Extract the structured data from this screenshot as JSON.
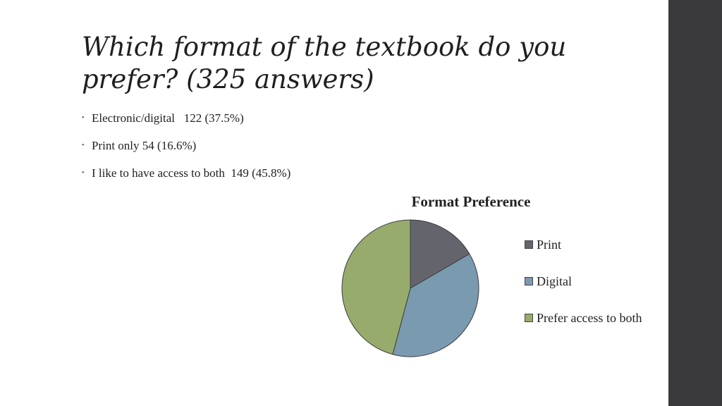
{
  "slide": {
    "title": "Which format of the textbook do you prefer? (325 answers)",
    "bullets": [
      {
        "text": "Electronic/digital   122 (37.5%)"
      },
      {
        "text": "Print only 54 (16.6%)"
      },
      {
        "text": "I like to have access to both  149 (45.8%)"
      }
    ],
    "bullet_glyph": "•"
  },
  "colors": {
    "print": "#64646c",
    "digital": "#7a9ab0",
    "both": "#97ac6c",
    "sidebar": "#3a3a3c"
  },
  "chart_data": {
    "type": "pie",
    "title": "Format Preference",
    "legend_position": "right",
    "categories": [
      "Print",
      "Digital",
      "Prefer access to both"
    ],
    "values": [
      54,
      122,
      149
    ],
    "colors": [
      "#64646c",
      "#7a9ab0",
      "#97ac6c"
    ]
  }
}
